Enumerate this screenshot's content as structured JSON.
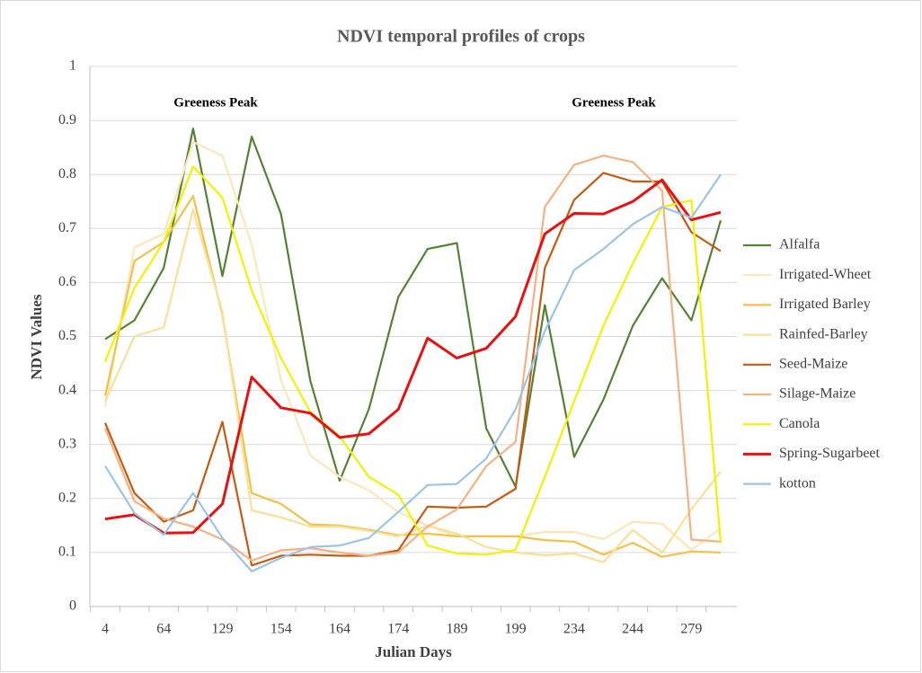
{
  "chart_data": {
    "type": "line",
    "title": "NDVI temporal profiles of crops",
    "x_label": "Julian Days",
    "y_label": "NDVI Values",
    "annotations": [
      "Greeness Peak",
      "Greeness Peak"
    ],
    "categories": [
      "4",
      null,
      "64",
      null,
      "129",
      null,
      "154",
      null,
      "164",
      null,
      "174",
      null,
      "189",
      null,
      "199",
      null,
      "234",
      null,
      "244",
      null,
      "279",
      null
    ],
    "ylim": [
      0,
      1
    ],
    "yticks": [
      0,
      0.1,
      0.2,
      0.3,
      0.4,
      0.5,
      0.6,
      0.7,
      0.8,
      0.9,
      1
    ],
    "grid": true,
    "legend": "right",
    "series": [
      {
        "name": "Alfalfa",
        "color": "#548235",
        "values": [
          0.495,
          0.53,
          0.627,
          0.885,
          0.612,
          0.87,
          0.727,
          0.418,
          0.233,
          0.366,
          0.573,
          0.662,
          0.673,
          0.33,
          0.222,
          0.558,
          0.277,
          0.383,
          0.52,
          0.608,
          0.53,
          0.715
        ]
      },
      {
        "name": "Irrigated-Wheet",
        "color": "#fde6b8",
        "values": [
          0.37,
          0.665,
          0.69,
          0.86,
          0.835,
          0.67,
          0.42,
          0.28,
          0.24,
          0.215,
          0.175,
          0.15,
          0.13,
          0.13,
          0.13,
          0.138,
          0.138,
          0.125,
          0.157,
          0.153,
          0.105,
          0.145
        ]
      },
      {
        "name": "Irrigated Barley",
        "color": "#f0c24a",
        "values": [
          0.39,
          0.64,
          0.675,
          0.76,
          0.54,
          0.21,
          0.19,
          0.152,
          0.15,
          0.142,
          0.132,
          0.135,
          0.13,
          0.13,
          0.13,
          0.123,
          0.12,
          0.096,
          0.118,
          0.092,
          0.102,
          0.1
        ]
      },
      {
        "name": "Rainfed-Barley",
        "color": "#fbdf96",
        "values": [
          0.38,
          0.5,
          0.517,
          0.735,
          0.545,
          0.178,
          0.165,
          0.148,
          0.148,
          0.14,
          0.13,
          0.15,
          0.135,
          0.11,
          0.1,
          0.095,
          0.098,
          0.082,
          0.142,
          0.1,
          0.18,
          0.25
        ]
      },
      {
        "name": "Seed-Maize",
        "color": "#c55a11",
        "values": [
          0.34,
          0.21,
          0.157,
          0.178,
          0.342,
          0.076,
          0.094,
          0.096,
          0.094,
          0.094,
          0.104,
          0.185,
          0.183,
          0.185,
          0.218,
          0.627,
          0.753,
          0.803,
          0.787,
          0.787,
          0.693,
          0.658
        ]
      },
      {
        "name": "Silage-Maize",
        "color": "#f4b183",
        "values": [
          0.33,
          0.195,
          0.163,
          0.148,
          0.124,
          0.085,
          0.104,
          0.108,
          0.1,
          0.094,
          0.1,
          0.148,
          0.18,
          0.26,
          0.305,
          0.74,
          0.818,
          0.835,
          0.823,
          0.77,
          0.124,
          0.12
        ]
      },
      {
        "name": "Canola",
        "color": "#f2f200",
        "values": [
          0.453,
          0.59,
          0.675,
          0.815,
          0.757,
          0.585,
          0.46,
          0.36,
          0.315,
          0.24,
          0.207,
          0.113,
          0.098,
          0.096,
          0.105,
          0.24,
          0.38,
          0.52,
          0.635,
          0.74,
          0.752,
          0.118
        ]
      },
      {
        "name": "Spring-Sugarbeet",
        "color": "#e81010",
        "values": [
          0.162,
          0.17,
          0.136,
          0.137,
          0.19,
          0.425,
          0.368,
          0.358,
          0.313,
          0.32,
          0.365,
          0.497,
          0.46,
          0.478,
          0.537,
          0.69,
          0.728,
          0.727,
          0.75,
          0.79,
          0.716,
          0.73
        ]
      },
      {
        "name": "kotton",
        "color": "#9dc3e6",
        "values": [
          0.26,
          0.173,
          0.133,
          0.21,
          0.127,
          0.065,
          0.09,
          0.11,
          0.113,
          0.127,
          0.175,
          0.225,
          0.227,
          0.274,
          0.365,
          0.51,
          0.623,
          0.662,
          0.708,
          0.74,
          0.72,
          0.8
        ]
      }
    ]
  }
}
